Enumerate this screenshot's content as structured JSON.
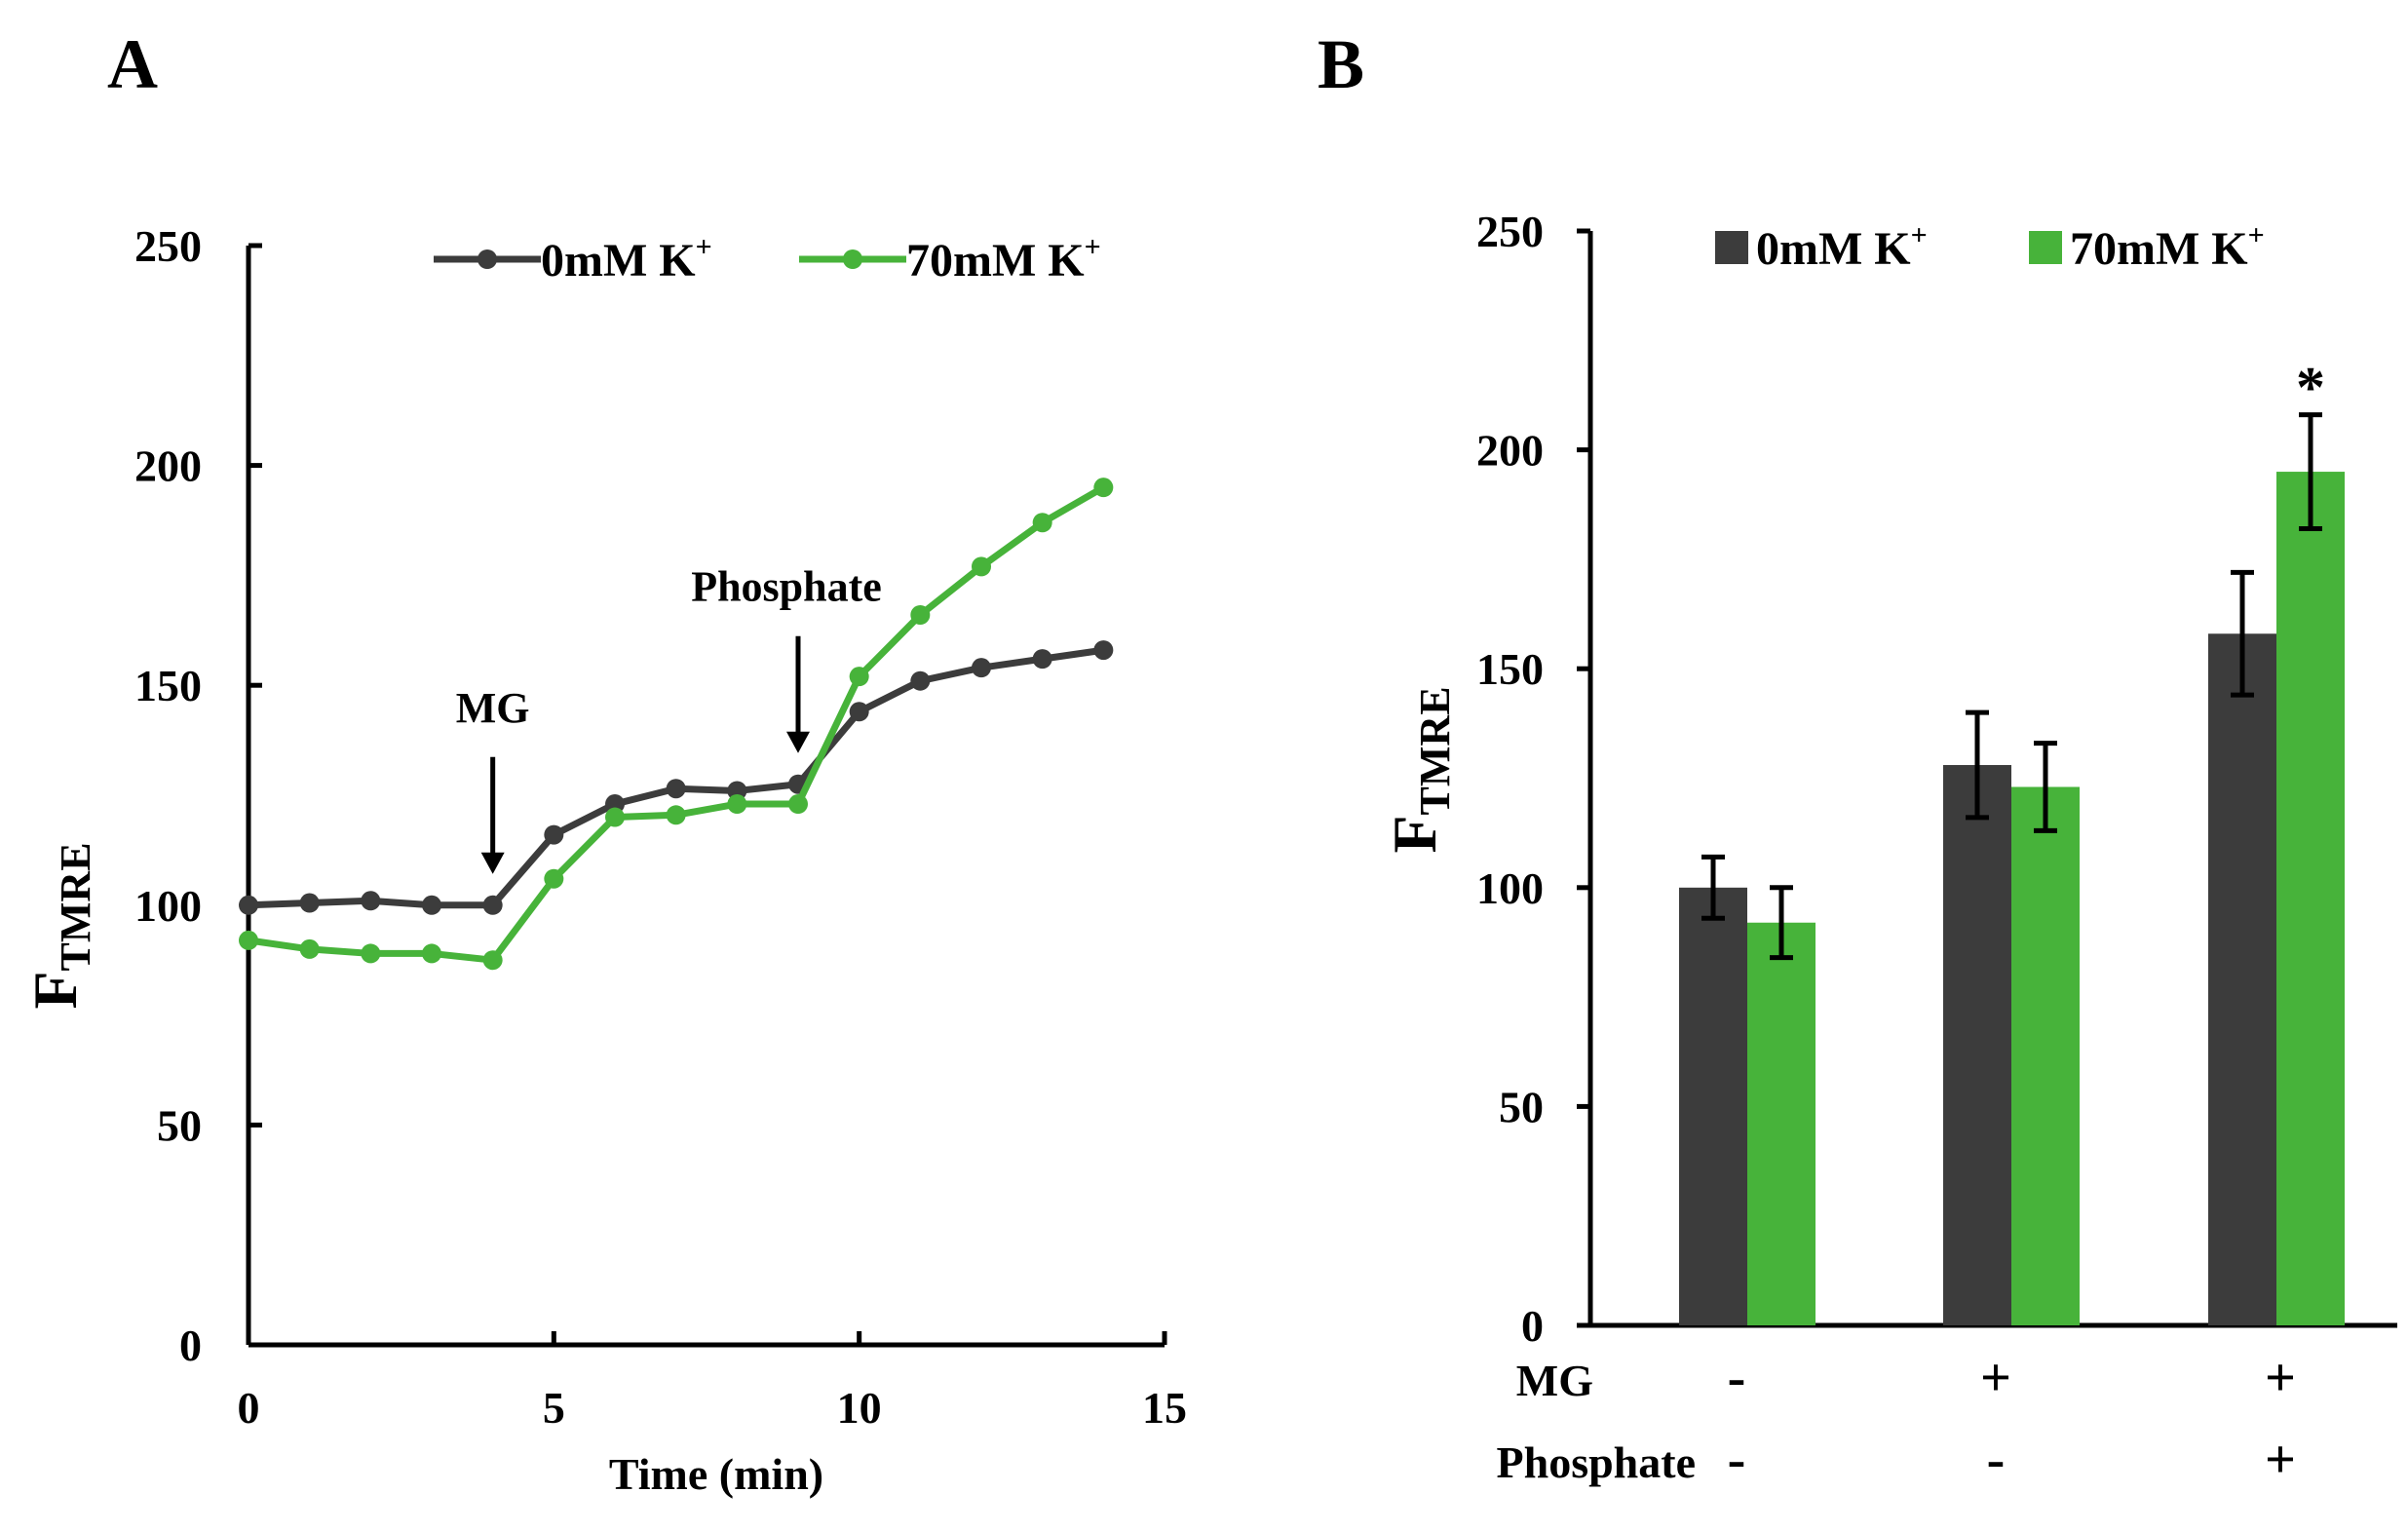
{
  "figure": {
    "colors": {
      "dark": "#3c3c3c",
      "green": "#47b33a",
      "axis": "#000000"
    }
  },
  "chart_data": [
    {
      "type": "line",
      "panel_label": "A",
      "ylabel_main": "F",
      "ylabel_sub": "TMRE",
      "xlabel": "Time (min)",
      "xlim": [
        0,
        15
      ],
      "ylim": [
        0,
        250
      ],
      "xticks": [
        0,
        5,
        10,
        15
      ],
      "yticks": [
        0,
        50,
        100,
        150,
        200,
        250
      ],
      "grid": false,
      "legend_position": "top",
      "x": [
        0,
        1,
        2,
        3,
        4,
        5,
        6,
        7,
        8,
        9,
        10,
        11,
        12,
        13,
        14
      ],
      "series": [
        {
          "name": "0mM K",
          "name_sup": "+",
          "color": "#3c3c3c",
          "values": [
            100,
            100.5,
            101,
            100,
            100,
            116,
            123,
            126.5,
            126,
            127.5,
            144,
            151,
            154,
            156,
            158
          ]
        },
        {
          "name": "70mM K",
          "name_sup": "+",
          "color": "#47b33a",
          "values": [
            92,
            90,
            89,
            89,
            87.5,
            106,
            120,
            120.5,
            123,
            123,
            152,
            166,
            177,
            187,
            195
          ]
        }
      ],
      "annotations": [
        {
          "text": "MG",
          "x": 4,
          "target_y": 100
        },
        {
          "text": "Phosphate",
          "x": 9,
          "target_y": 127.5
        }
      ]
    },
    {
      "type": "bar",
      "panel_label": "B",
      "ylabel_main": "F",
      "ylabel_sub": "TMRE",
      "ylim": [
        0,
        250
      ],
      "yticks": [
        0,
        50,
        100,
        150,
        200,
        250
      ],
      "grid": false,
      "legend_position": "top",
      "row_labels": [
        "MG",
        "Phosphate"
      ],
      "groups": [
        {
          "mg": "-",
          "phosphate": "-"
        },
        {
          "mg": "+",
          "phosphate": "-"
        },
        {
          "mg": "+",
          "phosphate": "+"
        }
      ],
      "series": [
        {
          "name": "0mM K",
          "name_sup": "+",
          "color": "#3c3c3c",
          "values": [
            100,
            128,
            158
          ],
          "errors": [
            7,
            12,
            14
          ]
        },
        {
          "name": "70mM K",
          "name_sup": "+",
          "color": "#47b33a",
          "values": [
            92,
            123,
            195
          ],
          "errors": [
            8,
            10,
            13
          ]
        }
      ],
      "significance": {
        "text": "*",
        "group": 2,
        "series": 1
      }
    }
  ]
}
